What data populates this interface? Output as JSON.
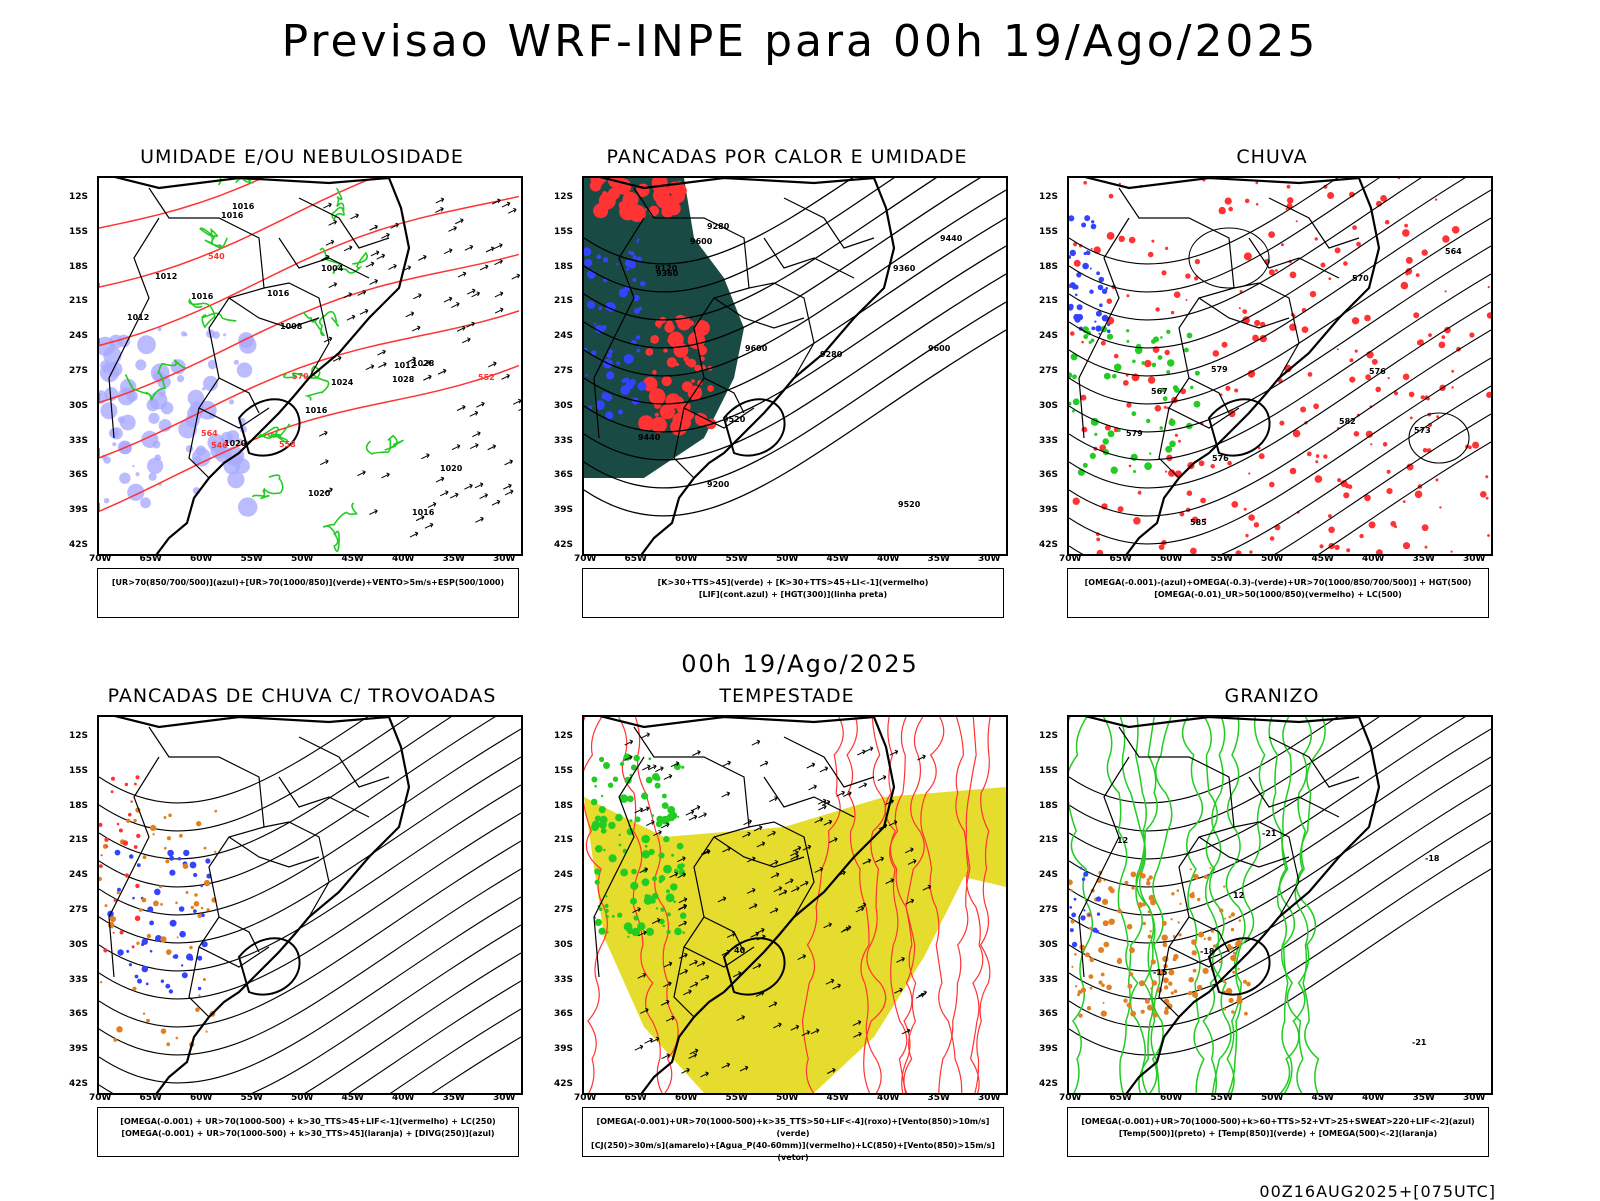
{
  "title": "Previsao WRF-INPE  para 00h 19/Ago/2025",
  "mid_date": "00h 19/Ago/2025",
  "footer": "00Z16AUG2025+[075UTC]",
  "lat_labels": [
    "12S",
    "15S",
    "18S",
    "21S",
    "24S",
    "27S",
    "30S",
    "33S",
    "36S",
    "39S",
    "42S"
  ],
  "lon_labels": [
    "70W",
    "65W",
    "60W",
    "55W",
    "50W",
    "45W",
    "40W",
    "35W",
    "30W"
  ],
  "colors": {
    "red": "#ff3333",
    "green": "#22cc22",
    "blue": "#3344ff",
    "lavender": "#aaaaff",
    "teal": "#1a4a44",
    "yellow": "#e6dc2e",
    "orange": "#e08020",
    "black": "#000000"
  },
  "panels": [
    {
      "id": "umidade",
      "title": "UMIDADE E/OU NEBULOSIDADE",
      "legend": [
        "[UR>70(850/700/500)](azul)+[UR>70(1000/850)](verde)+VENTO>5m/s+ESP(500/1000)"
      ],
      "contour_labels": [
        "1016",
        "1012",
        "1008",
        "1016",
        "1020",
        "1004",
        "1012",
        "1024",
        "1020",
        "1028",
        "1016",
        "1012",
        "1016",
        "1028",
        "1016",
        "1020",
        "1016",
        "570",
        "564",
        "558",
        "552",
        "546",
        "540"
      ]
    },
    {
      "id": "pancadas-calor",
      "title": "PANCADAS POR CALOR E UMIDADE",
      "legend": [
        "[K>30+TTS>45](verde) + [K>30+TTS>45+LI<-1](vermelho)",
        "[LIF](cont.azul) + [HGT(300)](linha preta)"
      ],
      "contour_labels": [
        "9600",
        "9600",
        "9600",
        "9520",
        "9440",
        "9360",
        "9280",
        "9200",
        "9520",
        "9440",
        "9360",
        "9280",
        "9120"
      ]
    },
    {
      "id": "chuva",
      "title": "CHUVA",
      "legend": [
        "[OMEGA(-0.001)-(azul)+OMEGA(-0.3)-(verde)+UR>70(1000/850/700/500)] + HGT(500)",
        "[OMEGA(-0.01)_UR>50(1000/850)(vermelho) + LC(500)"
      ],
      "contour_labels": [
        "585",
        "582",
        "579",
        "576",
        "573",
        "570",
        "567",
        "564",
        "576",
        "579"
      ]
    },
    {
      "id": "pancadas-trovoadas",
      "title": "PANCADAS DE CHUVA C/ TROVOADAS",
      "legend": [
        "[OMEGA(-0.001) + UR>70(1000-500) + k>30_TTS>45+LIF<-1](vermelho) + LC(250)",
        "[OMEGA(-0.001) + UR>70(1000-500) + k>30_TTS>45](laranja) + [DIVG(250)](azul)"
      ],
      "contour_labels": []
    },
    {
      "id": "tempestade",
      "title": "TEMPESTADE",
      "legend": [
        "[OMEGA(-0.001)+UR>70(1000-500)+k>35_TTS>50+LIF<-4](roxo)+[Vento(850)>10m/s](verde)",
        "[CJ(250)>30m/s](amarelo)+[Agua_P(40-60mm)](vermelho)+LC(850)+[Vento(850)>15m/s](vetor)"
      ],
      "contour_labels": [
        "40"
      ]
    },
    {
      "id": "granizo",
      "title": "GRANIZO",
      "legend": [
        "[OMEGA(-0.001)+UR>70(1000-500)+k>60+TTS>52+VT>25+SWEAT>220+LIF<-2](azul)",
        "[Temp(500)](preto) + [Temp(850)](verde) + [OMEGA(500)<-2](laranja)"
      ],
      "contour_labels": [
        "12",
        "12",
        "-15",
        "-18",
        "-18",
        "-21",
        "-21"
      ]
    }
  ]
}
